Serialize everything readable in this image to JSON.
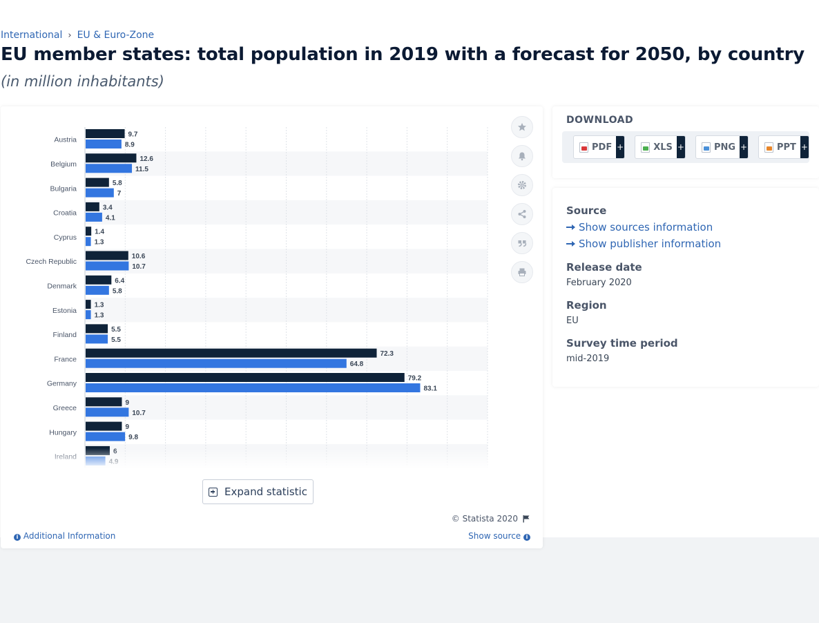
{
  "breadcrumb": {
    "items": [
      "International",
      "EU & Euro-Zone"
    ],
    "separator": "›"
  },
  "page": {
    "title": "EU member states: total population in 2019 with a forecast for 2050, by country",
    "subtitle": "(in million inhabitants)"
  },
  "chart_data": {
    "type": "bar",
    "orientation": "horizontal",
    "categories": [
      "Austria",
      "Belgium",
      "Bulgaria",
      "Croatia",
      "Cyprus",
      "Czech Republic",
      "Denmark",
      "Estonia",
      "Finland",
      "France",
      "Germany",
      "Greece",
      "Hungary",
      "Ireland"
    ],
    "series": [
      {
        "values": [
          9.7,
          12.6,
          5.8,
          3.4,
          1.4,
          10.6,
          6.4,
          1.3,
          5.5,
          72.3,
          79.2,
          9,
          9,
          6
        ],
        "color": "#0f2339"
      },
      {
        "values": [
          8.9,
          11.5,
          7,
          4.1,
          1.3,
          10.7,
          5.8,
          1.3,
          5.5,
          64.8,
          83.1,
          10.7,
          9.8,
          4.9
        ],
        "color": "#3376e0"
      }
    ],
    "xlim": [
      0,
      100
    ],
    "grid": true,
    "data_labels": true
  },
  "toolbar": {
    "icons": [
      "star-icon",
      "bell-icon",
      "gear-icon",
      "share-icon",
      "quote-icon",
      "print-icon"
    ]
  },
  "expand": {
    "label": "Expand statistic"
  },
  "footer": {
    "copyright": "© Statista 2020",
    "additional": "Additional Information",
    "show_source": "Show source"
  },
  "download": {
    "title": "DOWNLOAD",
    "buttons": [
      {
        "label": "PDF",
        "color": "#d9383a"
      },
      {
        "label": "XLS",
        "color": "#4caf50"
      },
      {
        "label": "PNG",
        "color": "#4a90d9"
      },
      {
        "label": "PPT",
        "color": "#e8862a"
      }
    ],
    "plus": "+"
  },
  "info": {
    "source_heading": "Source",
    "show_sources": "Show sources information",
    "show_publisher": "Show publisher information",
    "release_heading": "Release date",
    "release_value": "February 2020",
    "region_heading": "Region",
    "region_value": "EU",
    "survey_heading": "Survey time period",
    "survey_value": "mid-2019"
  }
}
